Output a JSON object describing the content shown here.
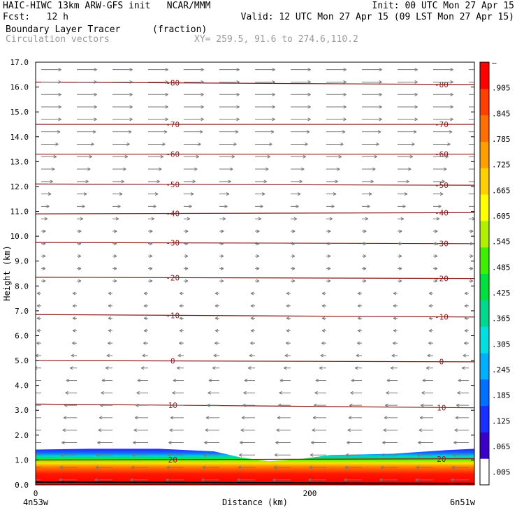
{
  "header": {
    "line1_left": "HAIC-HIWC 13km ARW-GFS init   NCAR/MMM",
    "line1_right": "Init: 00 UTC Mon 27 Apr 15",
    "line2_left": "Fcst:   12 h",
    "line2_right": "Valid: 12 UTC Mon 27 Apr 15 (09 LST Mon 27 Apr 15)",
    "line3_left": "Boundary Layer Tracer",
    "line3_unit": "(fraction)",
    "line4_left": "Circulation vectors",
    "line4_xy": "XY= 259.5, 91.6 to 274.6,110.2"
  },
  "colors": {
    "contour": "#8b1a1a",
    "vector": "#777777",
    "colorbar": [
      "#ffffff",
      "#3a00c8",
      "#1a30ff",
      "#0070ff",
      "#00b0ff",
      "#00e0e0",
      "#00d890",
      "#00e040",
      "#40f000",
      "#b0f000",
      "#ffff00",
      "#ffd000",
      "#ffa000",
      "#ff7000",
      "#ff4000",
      "#ff0000"
    ]
  },
  "chart_data": {
    "type": "heatmap",
    "title": "Boundary Layer Tracer",
    "units": "(fraction)",
    "xlabel": "Distance (km)",
    "ylabel": "Height (km)",
    "xlim": [
      0,
      320
    ],
    "ylim": [
      0,
      17
    ],
    "x_ticks": [
      "0",
      "200"
    ],
    "x_tick_values": [
      0,
      200
    ],
    "y_ticks": [
      "0.0",
      "1.0",
      "2.0",
      "3.0",
      "4.0",
      "5.0",
      "6.0",
      "7.0",
      "8.0",
      "9.0",
      "10.0",
      "11.0",
      "12.0",
      "13.0",
      "14.0",
      "15.0",
      "16.0",
      "17.0"
    ],
    "endpoints": {
      "left": "4n53w",
      "right": "6n51w"
    },
    "colorbar_labels": [
      ".005",
      ".065",
      ".125",
      ".185",
      ".245",
      ".305",
      ".365",
      ".425",
      ".485",
      ".545",
      ".605",
      ".665",
      ".725",
      ".785",
      ".845",
      ".905",
      "–"
    ],
    "contours": [
      {
        "label": "20",
        "level_km": 1.0,
        "tilt_km": 0.05
      },
      {
        "label": "10",
        "level_km": 3.25,
        "tilt_km": -0.15
      },
      {
        "label": "0",
        "level_km": 5.0,
        "tilt_km": -0.05
      },
      {
        "label": "-10",
        "level_km": 6.85,
        "tilt_km": -0.1
      },
      {
        "label": "-20",
        "level_km": 8.35,
        "tilt_km": -0.05
      },
      {
        "label": "-30",
        "level_km": 9.75,
        "tilt_km": -0.05
      },
      {
        "label": "-40",
        "level_km": 10.9,
        "tilt_km": 0.05
      },
      {
        "label": "-50",
        "level_km": 12.1,
        "tilt_km": -0.05
      },
      {
        "label": "-60",
        "level_km": 13.3,
        "tilt_km": 0.0
      },
      {
        "label": "-70",
        "level_km": 14.5,
        "tilt_km": 0.0
      },
      {
        "label": "-80",
        "level_km": 16.2,
        "tilt_km": -0.1
      }
    ],
    "boundary_layer_top_km": [
      [
        0,
        1.42
      ],
      [
        40,
        1.45
      ],
      [
        90,
        1.45
      ],
      [
        130,
        1.35
      ],
      [
        150,
        1.1
      ],
      [
        170,
        0.95
      ],
      [
        195,
        1.05
      ],
      [
        215,
        1.2
      ],
      [
        260,
        1.25
      ],
      [
        300,
        1.4
      ],
      [
        320,
        1.45
      ]
    ]
  }
}
